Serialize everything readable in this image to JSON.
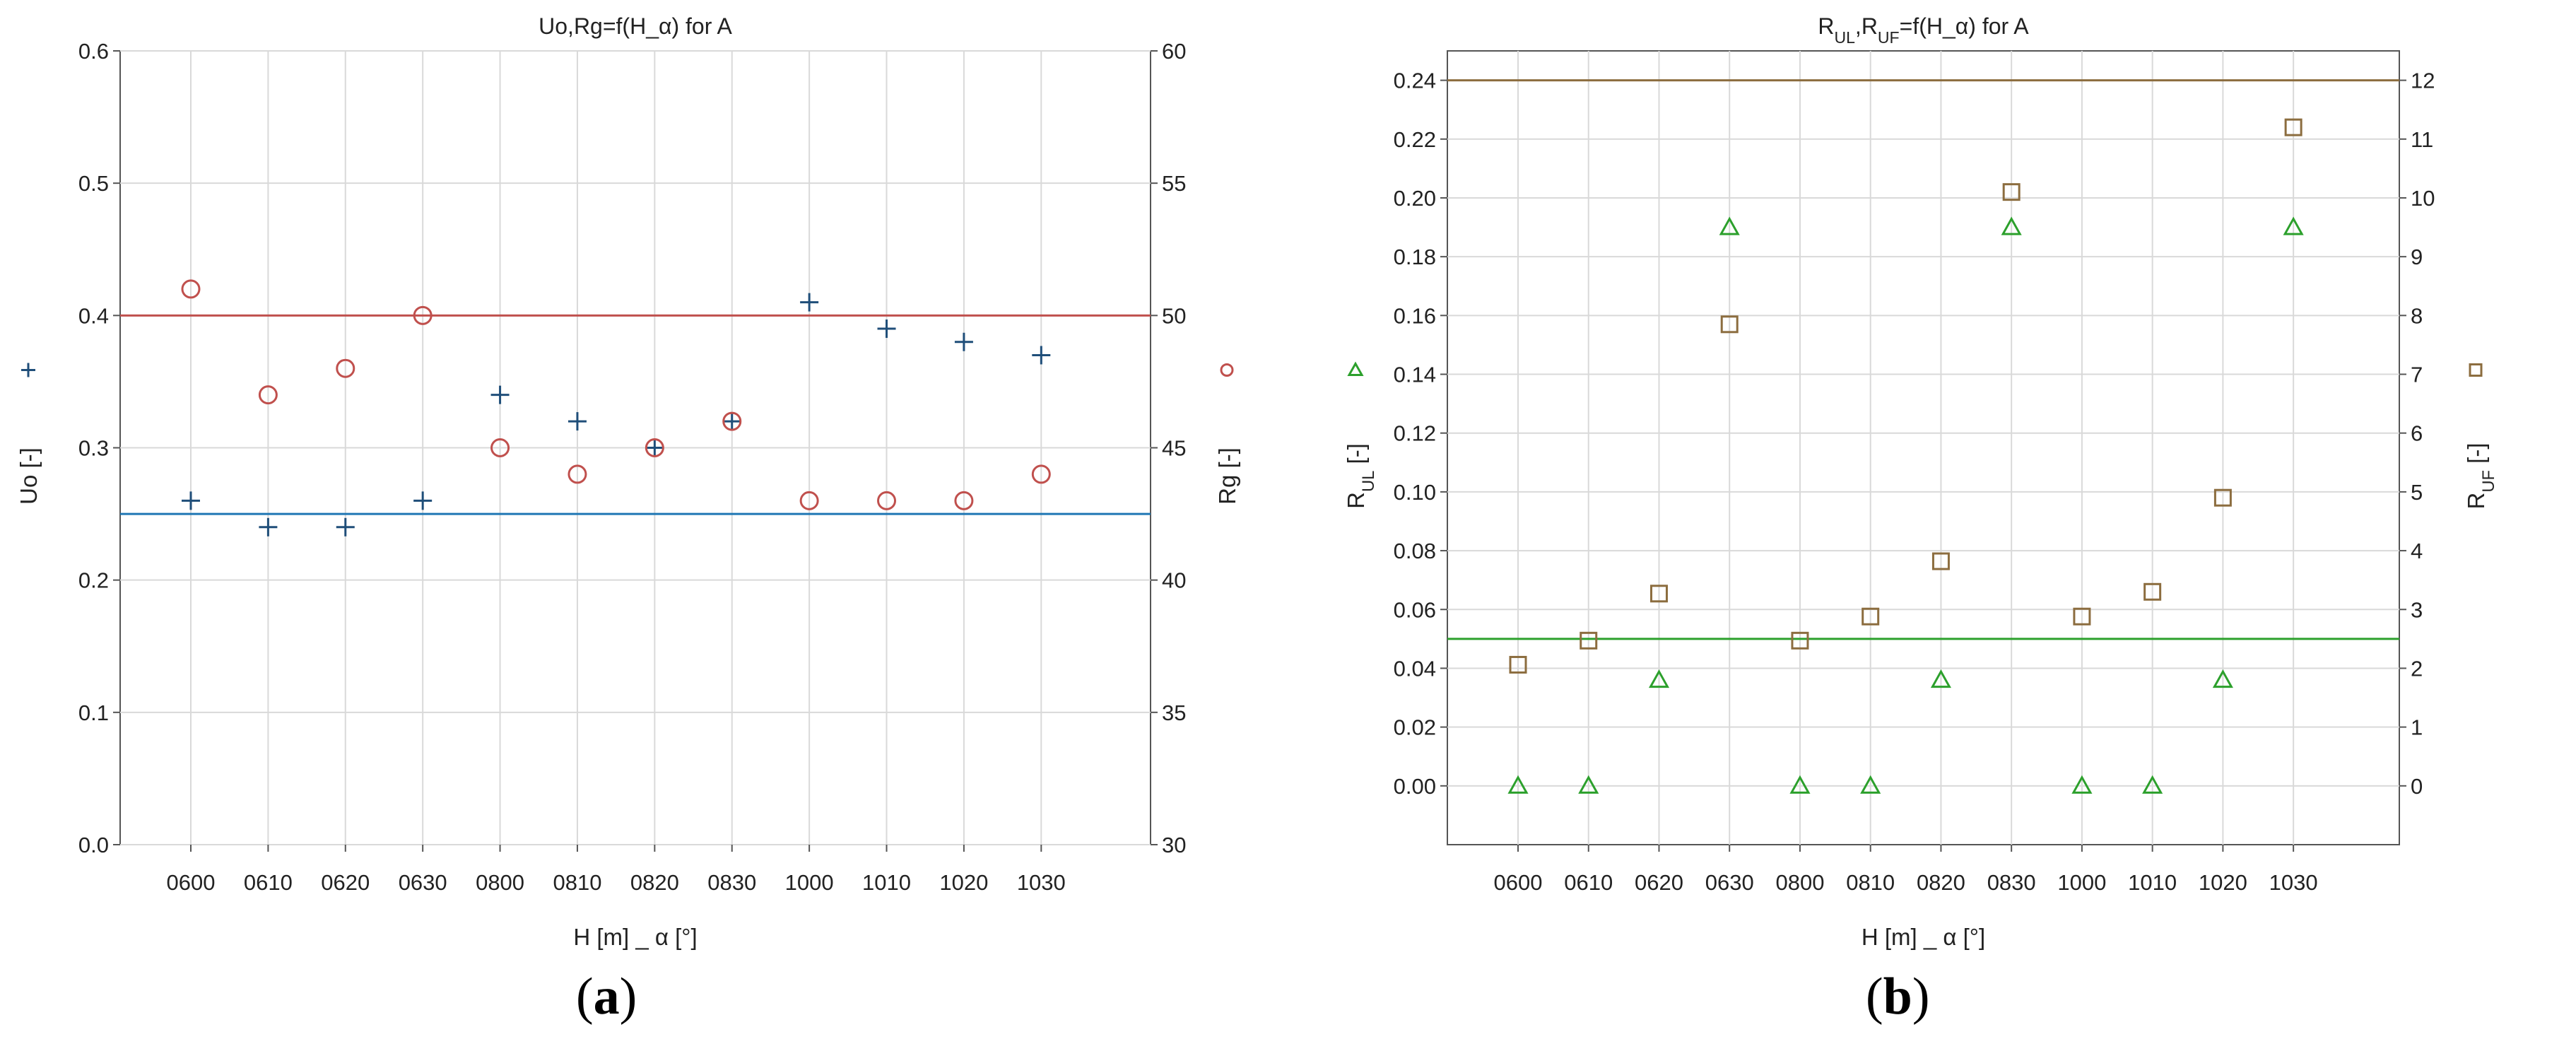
{
  "chart_data": [
    {
      "type": "scatter",
      "title": "Uo,Rg=f(H_α) for A",
      "xlabel": "H [m] _ α [°]",
      "categories": [
        "0600",
        "0610",
        "0620",
        "0630",
        "0800",
        "0810",
        "0820",
        "0830",
        "1000",
        "1010",
        "1020",
        "1030"
      ],
      "y_left": {
        "label": "Uo [-]",
        "ylim": [
          0,
          0.6
        ],
        "ticks": [
          "0.0",
          "0.1",
          "0.2",
          "0.3",
          "0.4",
          "0.5",
          "0.6"
        ]
      },
      "y_right": {
        "label": "Rg [-]",
        "ylim": [
          30,
          60
        ],
        "ticks": [
          "30",
          "35",
          "40",
          "45",
          "50",
          "55",
          "60"
        ]
      },
      "grid": true,
      "series": [
        {
          "name": "Uo",
          "axis": "left",
          "marker": "plus",
          "color": "#1f4e79",
          "values": [
            0.26,
            0.24,
            0.24,
            0.26,
            0.34,
            0.32,
            0.3,
            0.32,
            0.41,
            0.39,
            0.38,
            0.37
          ]
        },
        {
          "name": "Rg",
          "axis": "right",
          "marker": "circle",
          "color": "#c0504d",
          "values": [
            51,
            47,
            48,
            50,
            45,
            44,
            45,
            46,
            43,
            43,
            43,
            44
          ]
        }
      ],
      "reference_lines": [
        {
          "axis": "left",
          "value": 0.25,
          "color": "#1f77b4"
        },
        {
          "axis": "right",
          "value": 50,
          "color": "#c0504d"
        }
      ]
    },
    {
      "type": "scatter",
      "title_parts": [
        "R",
        "UL",
        ",R",
        "UF",
        "=f(H_α) for A"
      ],
      "xlabel": "H [m] _ α [°]",
      "categories": [
        "0600",
        "0610",
        "0620",
        "0630",
        "0800",
        "0810",
        "0820",
        "0830",
        "1000",
        "1010",
        "1020",
        "1030"
      ],
      "y_left": {
        "label_parts": [
          "R",
          "UL",
          " [-]"
        ],
        "ylim": [
          -0.02,
          0.25
        ],
        "ticks": [
          "0.00",
          "0.02",
          "0.04",
          "0.06",
          "0.08",
          "0.10",
          "0.12",
          "0.14",
          "0.16",
          "0.18",
          "0.20",
          "0.22",
          "0.24"
        ]
      },
      "y_right": {
        "label_parts": [
          "R",
          "UF",
          " [-]"
        ],
        "ylim": [
          -1,
          12.5
        ],
        "ticks": [
          "0",
          "1",
          "2",
          "3",
          "4",
          "5",
          "6",
          "7",
          "8",
          "9",
          "10",
          "11",
          "12"
        ]
      },
      "grid": true,
      "series": [
        {
          "name": "RUL",
          "axis": "left",
          "marker": "triangle",
          "color": "#2ca02c",
          "values": [
            0.0,
            0.0,
            0.036,
            0.19,
            0.0,
            0.0,
            0.036,
            0.19,
            0.0,
            0.0,
            0.036,
            0.19
          ]
        },
        {
          "name": "RUF",
          "axis": "right",
          "marker": "square",
          "color": "#8c6d3f",
          "values": [
            2.06,
            2.47,
            3.27,
            7.85,
            2.47,
            2.88,
            3.82,
            10.1,
            2.88,
            3.3,
            4.9,
            11.2
          ]
        }
      ],
      "reference_lines": [
        {
          "axis": "left",
          "value": 0.05,
          "color": "#2ca02c"
        },
        {
          "axis": "right",
          "value": 12,
          "color": "#8c6d3f"
        }
      ]
    }
  ],
  "panel_labels": {
    "a": "a",
    "b": "b"
  }
}
